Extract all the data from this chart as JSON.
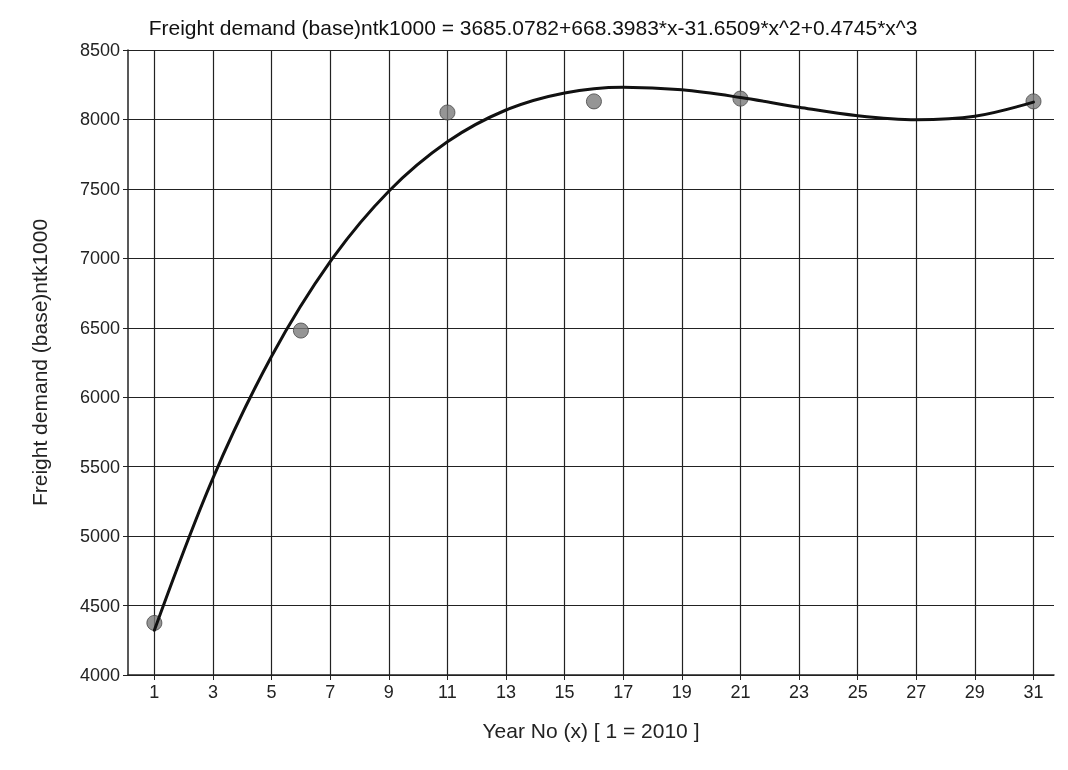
{
  "chart_data": {
    "type": "scatter",
    "title": "Freight demand (base)ntk1000 = 3685.0782+668.3983*x-31.6509*x^2+0.4745*x^3",
    "xlabel": "Year No (x) [ 1 = 2010 ]",
    "ylabel": "Freight demand (base)ntk1000",
    "xlim": [
      0.1,
      31.7
    ],
    "xticks": [
      1,
      3,
      5,
      7,
      9,
      11,
      13,
      15,
      17,
      19,
      21,
      23,
      25,
      27,
      29,
      31
    ],
    "ylim": [
      4000,
      8500
    ],
    "yticks": [
      4000,
      4500,
      5000,
      5500,
      6000,
      6500,
      7000,
      7500,
      8000,
      8500
    ],
    "grid": true,
    "series": [
      {
        "color": "#7a7a7a",
        "marker": "circle",
        "x": [
          1,
          6,
          11,
          16,
          21,
          31
        ],
        "values": [
          4375,
          6480,
          8050,
          8130,
          8150,
          8130
        ]
      },
      {
        "type": "line",
        "color": "#111111",
        "marker": "none",
        "line_style": "solid",
        "x": [
          1,
          3,
          5,
          7,
          9,
          11,
          13,
          15,
          17,
          19,
          21,
          23,
          25,
          27,
          29,
          31
        ],
        "values": [
          4322,
          5418,
          6295,
          6976,
          7483,
          7839,
          8068,
          8191,
          8232,
          8213,
          8158,
          8088,
          8027,
          7998,
          8023,
          8125
        ]
      }
    ]
  }
}
